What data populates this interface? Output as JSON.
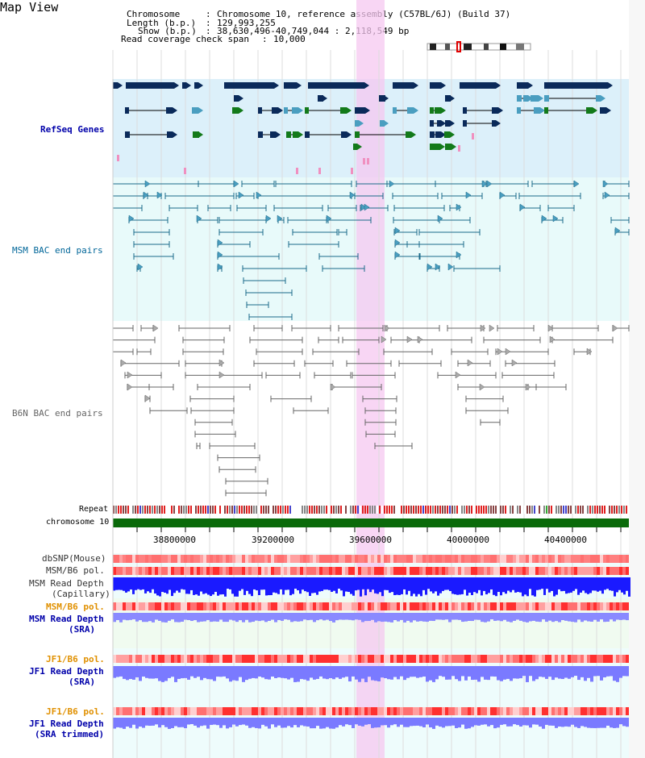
{
  "title": "Map View",
  "header": {
    "chromosome_key": "Chromosome",
    "chromosome_value": "Chromosome 10, reference assembly (C57BL/6J) (Build 37)",
    "length_key": "Length (b.p.)",
    "length_value": "129,993,255",
    "show_key": "Show (b.p.)",
    "show_value": "38,630,496-40,749,044 : 2,118,549 bp",
    "coverage_key": "Read coverage check span",
    "coverage_value": "10,000",
    "sep": ":"
  },
  "tracks": {
    "refseq": "RefSeq Genes",
    "msm_bac": "MSM BAC end pairs",
    "b6n_bac": "B6N BAC end pairs",
    "repeat": "Repeat",
    "chromosome": "chromosome 10",
    "dbsnp": "dbSNP(Mouse)",
    "msm_b6_pol_1": "MSM/B6 pol.",
    "msm_read_depth_cap_1": "MSM Read Depth",
    "msm_read_depth_cap_2": "(Capillary)",
    "msm_b6_pol_2": "MSM/B6 pol.",
    "msm_read_depth_sra_1": "MSM Read Depth",
    "msm_read_depth_sra_2": "(SRA)",
    "jf1_b6_pol_1": "JF1/B6 pol.",
    "jf1_read_depth_sra_1": "JF1 Read Depth",
    "jf1_read_depth_sra_2": "(SRA)",
    "jf1_b6_pol_2": "JF1/B6 pol.",
    "jf1_read_depth_trim_1": "JF1 Read Depth",
    "jf1_read_depth_trim_2": "(SRA trimmed)"
  },
  "axis": {
    "ticks": [
      "38800000",
      "39200000",
      "39600000",
      "40000000",
      "40400000"
    ]
  },
  "colors": {
    "refseq_bg": "#dcf0fa",
    "bac_bg": "#e8fafa",
    "highlight": "#f5c8f0",
    "gene_navy": "#0a2a5a",
    "gene_teal": "#4a9ec0",
    "gene_green": "#137a1a",
    "gene_pink": "#f090c0",
    "bac_msm": "#1a6a8a",
    "bac_b6n": "#666666",
    "label_blue": "#0000aa",
    "label_orange": "#e09000",
    "label_msm": "#006699",
    "chromosome_bar": "#0a6a0a",
    "depth_blue": "#1a1aff",
    "depth_sra": "#8a8aff",
    "pol_red": "#ff3030"
  }
}
